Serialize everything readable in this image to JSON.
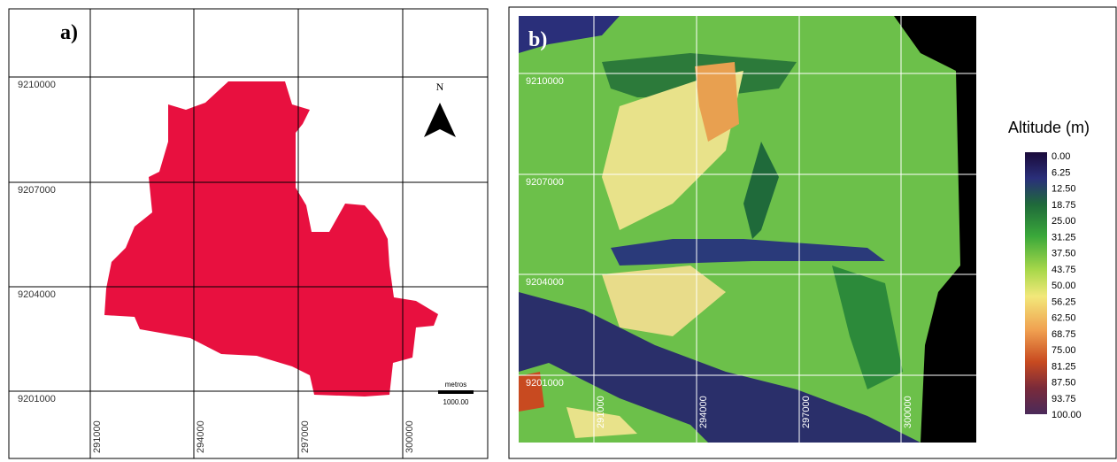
{
  "panel_a": {
    "label": "a)",
    "north": "N",
    "scale_unit": "metros",
    "scale_length": "1000.00",
    "northings": [
      "9210000",
      "9207000",
      "9204000",
      "9201000"
    ],
    "eastings": [
      "291000",
      "294000",
      "297000",
      "300000"
    ]
  },
  "panel_b": {
    "label": "b)",
    "northings": [
      "9210000",
      "9207000",
      "9204000",
      "9201000"
    ],
    "eastings": [
      "291000",
      "294000",
      "297000",
      "300000"
    ],
    "legend": {
      "title": "Altitude (m)",
      "labels": [
        "0.00",
        "6.25",
        "12.50",
        "18.75",
        "25.00",
        "31.25",
        "37.50",
        "43.75",
        "50.00",
        "56.25",
        "62.50",
        "68.75",
        "75.00",
        "81.25",
        "87.50",
        "93.75",
        "100.00"
      ]
    }
  }
}
